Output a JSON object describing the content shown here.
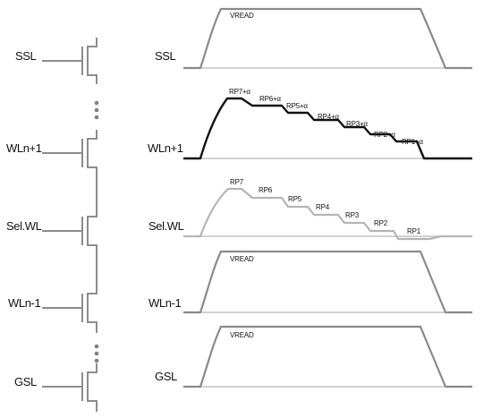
{
  "left_labels": {
    "ssl": "SSL",
    "wln1": "WLn+1",
    "sel": "Sel.WL",
    "wlm1": "WLn-1",
    "gsl": "GSL"
  },
  "waveform_labels": {
    "ssl": "SSL",
    "wln1": "WLn+1",
    "sel": "Sel.WL",
    "wlm1": "WLn-1",
    "gsl": "GSL"
  },
  "vread": {
    "ssl": "VREAD",
    "wlm1": "VREAD",
    "gsl": "VREAD"
  },
  "wln1_steps": [
    "RP7+α",
    "RP6+α",
    "RP5+α",
    "RP4+α",
    "RP3+α",
    "RP2+α",
    "RP1+α"
  ],
  "sel_steps": [
    "RP7",
    "RP6",
    "RP5",
    "RP4",
    "RP3",
    "RP2",
    "RP1"
  ],
  "colors": {
    "transistor": "#8c8c8c",
    "vread_wave": "#8a8a8a",
    "selected_wave": "#b4b4b4",
    "unselected_wave": "#111111",
    "baseline": "#d2d2d2"
  }
}
